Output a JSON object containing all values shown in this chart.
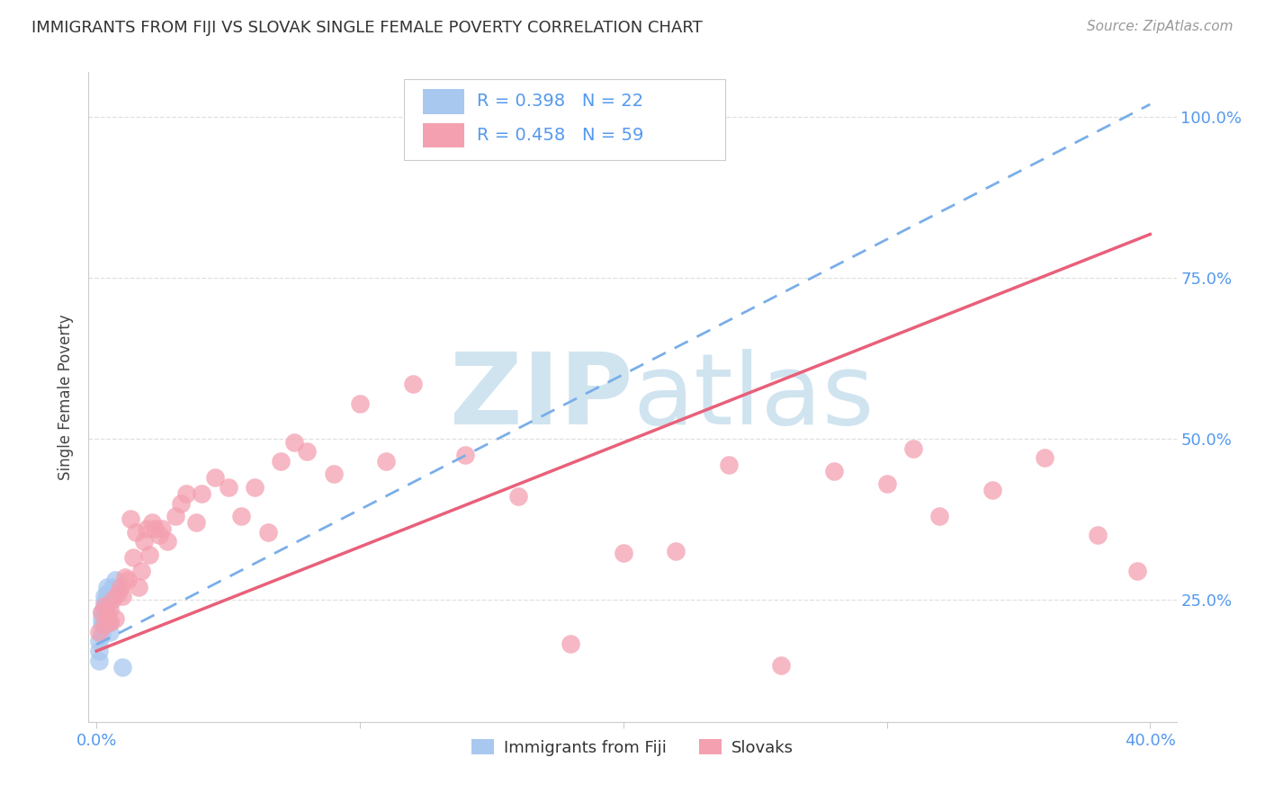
{
  "title": "IMMIGRANTS FROM FIJI VS SLOVAK SINGLE FEMALE POVERTY CORRELATION CHART",
  "source": "Source: ZipAtlas.com",
  "ylabel": "Single Female Poverty",
  "xlim": [
    -0.003,
    0.41
  ],
  "ylim": [
    0.06,
    1.07
  ],
  "fiji_R": 0.398,
  "fiji_N": 22,
  "slovak_R": 0.458,
  "slovak_N": 59,
  "fiji_color": "#a8c8f0",
  "slovak_color": "#f4a0b0",
  "fiji_line_color": "#7aaee8",
  "slovak_line_color": "#e8607a",
  "fiji_x": [
    0.001,
    0.001,
    0.001,
    0.002,
    0.002,
    0.002,
    0.002,
    0.003,
    0.003,
    0.003,
    0.003,
    0.003,
    0.004,
    0.004,
    0.004,
    0.005,
    0.005,
    0.006,
    0.006,
    0.007,
    0.008,
    0.01
  ],
  "fiji_y": [
    0.155,
    0.17,
    0.185,
    0.195,
    0.21,
    0.22,
    0.23,
    0.215,
    0.225,
    0.235,
    0.245,
    0.255,
    0.24,
    0.26,
    0.27,
    0.2,
    0.215,
    0.255,
    0.27,
    0.28,
    0.265,
    0.145
  ],
  "slovak_x": [
    0.001,
    0.002,
    0.003,
    0.003,
    0.004,
    0.005,
    0.005,
    0.006,
    0.007,
    0.008,
    0.009,
    0.01,
    0.011,
    0.012,
    0.013,
    0.014,
    0.015,
    0.016,
    0.017,
    0.018,
    0.019,
    0.02,
    0.021,
    0.022,
    0.024,
    0.025,
    0.027,
    0.03,
    0.032,
    0.034,
    0.038,
    0.04,
    0.045,
    0.05,
    0.055,
    0.06,
    0.065,
    0.07,
    0.075,
    0.08,
    0.09,
    0.1,
    0.11,
    0.12,
    0.14,
    0.16,
    0.18,
    0.2,
    0.22,
    0.24,
    0.26,
    0.28,
    0.3,
    0.31,
    0.32,
    0.34,
    0.36,
    0.38,
    0.395
  ],
  "slovak_y": [
    0.2,
    0.23,
    0.21,
    0.24,
    0.225,
    0.215,
    0.235,
    0.25,
    0.22,
    0.26,
    0.27,
    0.255,
    0.285,
    0.28,
    0.375,
    0.315,
    0.355,
    0.27,
    0.295,
    0.34,
    0.36,
    0.32,
    0.37,
    0.36,
    0.35,
    0.36,
    0.34,
    0.38,
    0.4,
    0.415,
    0.37,
    0.415,
    0.44,
    0.425,
    0.38,
    0.425,
    0.355,
    0.465,
    0.495,
    0.48,
    0.445,
    0.555,
    0.465,
    0.585,
    0.475,
    0.41,
    0.182,
    0.322,
    0.325,
    0.46,
    0.148,
    0.45,
    0.43,
    0.485,
    0.38,
    0.42,
    0.47,
    0.35,
    0.295
  ],
  "background_color": "#ffffff",
  "grid_color": "#e0e0e0",
  "watermark_color": "#d0e4f0",
  "legend_fiji_label": "Immigrants from Fiji",
  "legend_slovak_label": "Slovaks",
  "ytick_vals": [
    0.25,
    0.5,
    0.75,
    1.0
  ],
  "ytick_labels": [
    "25.0%",
    "50.0%",
    "75.0%",
    "100.0%"
  ],
  "xtick_vals": [
    0.0,
    0.1,
    0.2,
    0.3,
    0.4
  ],
  "xtick_show": [
    "0.0%",
    "",
    "",
    "",
    "40.0%"
  ],
  "tick_color": "#5599ee"
}
